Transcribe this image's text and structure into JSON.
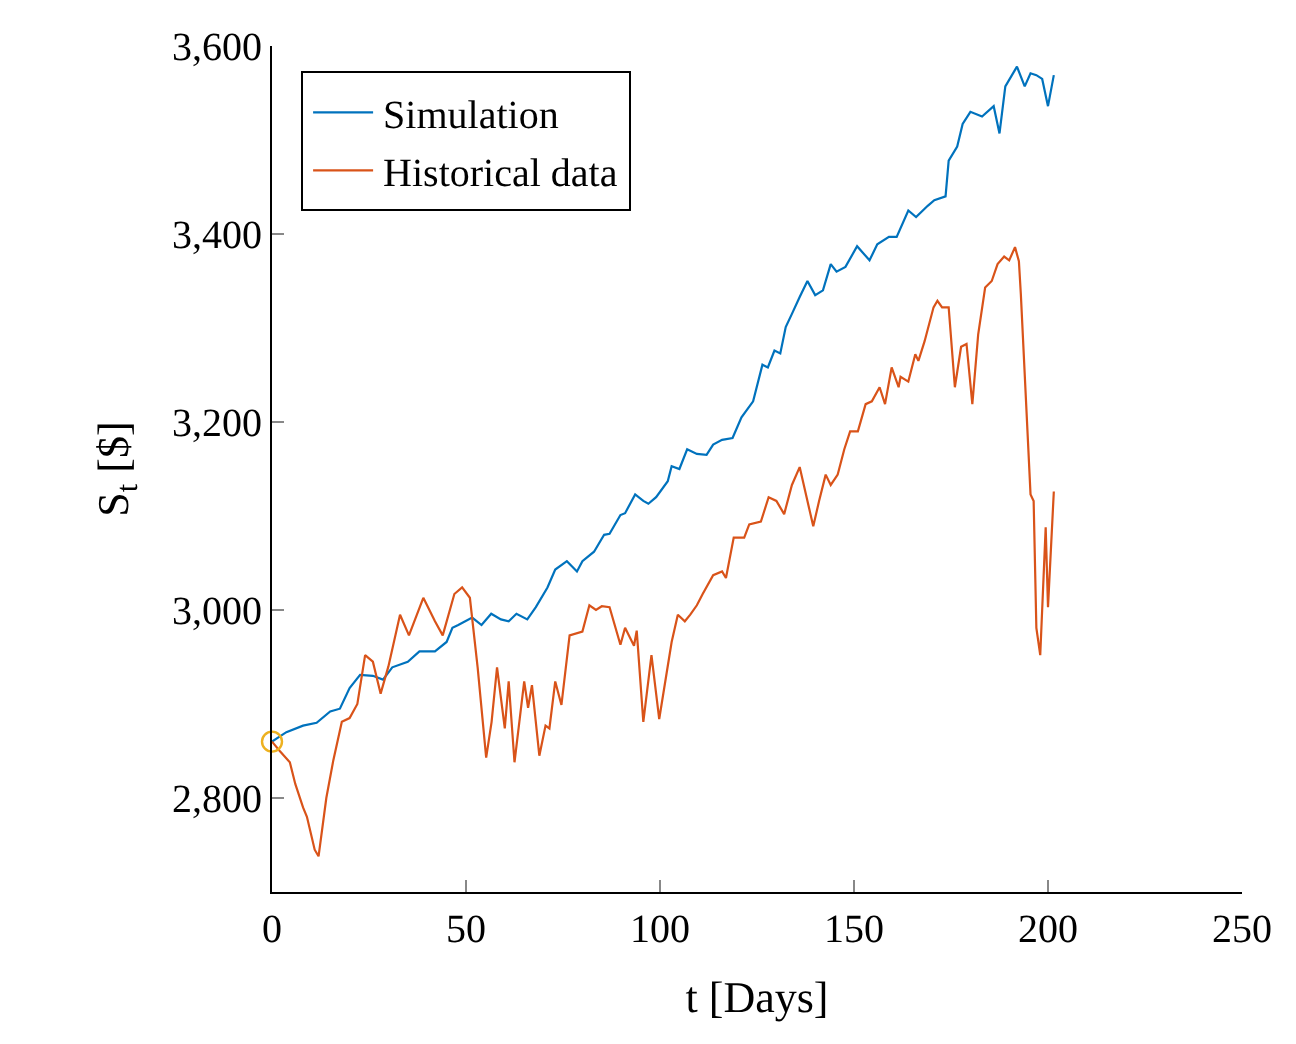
{
  "chart_data": {
    "type": "line",
    "xlabel": "t [Days]",
    "ylabel": "S$_{t}$ [$]",
    "xlim": [
      0,
      250
    ],
    "xticks": [
      0,
      50,
      100,
      150,
      200,
      250
    ],
    "ylim": [
      2700,
      3600
    ],
    "yticks": [
      {
        "value": 2800,
        "label": "2,800"
      },
      {
        "value": 3000,
        "label": "3,000"
      },
      {
        "value": 3200,
        "label": "3,200"
      },
      {
        "value": 3400,
        "label": "3,400"
      },
      {
        "value": 3600,
        "label": "3,600"
      }
    ],
    "grid": false,
    "legend": "top left",
    "marker": "none",
    "series": [
      {
        "name": "Simulation",
        "color": "#0072bd",
        "x": [
          0,
          3.7,
          8,
          11.5,
          15,
          17.5,
          20,
          22.7,
          26,
          28.6,
          31,
          35,
          38,
          42,
          45,
          46.5,
          48,
          51.6,
          54,
          56.5,
          59,
          61,
          63,
          65.8,
          68,
          71,
          73,
          76,
          78.6,
          80,
          83,
          85.6,
          87,
          89.8,
          91,
          93.6,
          95.7,
          97,
          99,
          102,
          103,
          105,
          107,
          109.5,
          112,
          113.7,
          116,
          118.7,
          121,
          124,
          126.4,
          127.8,
          129.5,
          131,
          132.4,
          134,
          136,
          138,
          140,
          142,
          144,
          145.5,
          147.8,
          150.8,
          154,
          156,
          159,
          161,
          164,
          166,
          169,
          170.7,
          173.6,
          174.4,
          176.6,
          178,
          180,
          183,
          186,
          187.5,
          189,
          192,
          194,
          195.5,
          197,
          198.5,
          200,
          201.5
        ],
        "values": [
          2860,
          2870,
          2877,
          2880,
          2892,
          2895,
          2917,
          2931,
          2930,
          2926,
          2939,
          2945,
          2956,
          2956,
          2966,
          2981,
          2984,
          2992,
          2984,
          2996,
          2990,
          2988,
          2996,
          2990,
          3003,
          3024,
          3043,
          3052,
          3041,
          3052,
          3062,
          3080,
          3081,
          3101,
          3103,
          3123,
          3116,
          3113,
          3120,
          3137,
          3153,
          3150,
          3171,
          3166,
          3165,
          3176,
          3181,
          3183,
          3205,
          3222,
          3261,
          3258,
          3276,
          3273,
          3301,
          3315,
          3333,
          3350,
          3335,
          3340,
          3368,
          3360,
          3365,
          3387,
          3372,
          3389,
          3397,
          3397,
          3425,
          3418,
          3430,
          3436,
          3440,
          3478,
          3493,
          3517,
          3530,
          3525,
          3536,
          3507,
          3557,
          3578,
          3557,
          3571,
          3569,
          3565,
          3536,
          3569
        ]
      },
      {
        "name": "Historical data",
        "color": "#d95319",
        "x": [
          0,
          2,
          4.6,
          6,
          8,
          9,
          11,
          12,
          14,
          15.8,
          18,
          20,
          22,
          24,
          26,
          28,
          30,
          33,
          35.3,
          39,
          42,
          44,
          47,
          49,
          51,
          53,
          55.2,
          56.6,
          58,
          60,
          61,
          62.5,
          65,
          66,
          67,
          68.9,
          70.5,
          71.5,
          73,
          74.6,
          76.7,
          80,
          81.8,
          83.5,
          85,
          87,
          89.8,
          91,
          93.3,
          94,
          95.7,
          97.8,
          99.8,
          103,
          104.6,
          106.4,
          107.8,
          109.5,
          111,
          113.7,
          116,
          117,
          119,
          121.7,
          123,
          126,
          128,
          130,
          132,
          134,
          136,
          139.5,
          141,
          142.7,
          144,
          145.8,
          147.5,
          149,
          151,
          153,
          154.6,
          156.6,
          158,
          159.7,
          161.5,
          162,
          164,
          165.8,
          166.6,
          168.2,
          170.5,
          171.5,
          172.7,
          174.4,
          176,
          177.6,
          179,
          180.5,
          182,
          183.8,
          185.5,
          187,
          188.7,
          190,
          191.5,
          192.5,
          193,
          195.5,
          196.3,
          197,
          198,
          199.4,
          200,
          201.5
        ],
        "values": [
          2860,
          2850,
          2838,
          2815,
          2790,
          2780,
          2745,
          2738,
          2800,
          2840,
          2881,
          2885,
          2900,
          2952,
          2945,
          2911,
          2940,
          2995,
          2973,
          3013,
          2988,
          2973,
          3017,
          3024,
          3013,
          2939,
          2843,
          2881,
          2939,
          2874,
          2924,
          2838,
          2924,
          2896,
          2920,
          2845,
          2877,
          2874,
          2924,
          2899,
          2973,
          2977,
          3005,
          3000,
          3004,
          3003,
          2963,
          2981,
          2962,
          2978,
          2881,
          2952,
          2884,
          2966,
          2995,
          2988,
          2995,
          3005,
          3017,
          3037,
          3041,
          3034,
          3077,
          3077,
          3091,
          3094,
          3120,
          3116,
          3102,
          3133,
          3152,
          3089,
          3116,
          3144,
          3133,
          3144,
          3171,
          3190,
          3190,
          3219,
          3222,
          3237,
          3219,
          3258,
          3237,
          3248,
          3243,
          3272,
          3265,
          3286,
          3322,
          3329,
          3322,
          3322,
          3237,
          3280,
          3283,
          3219,
          3293,
          3343,
          3350,
          3368,
          3376,
          3372,
          3386,
          3371,
          3336,
          3123,
          3116,
          2981,
          2952,
          3088,
          3003,
          3126
        ]
      },
      {
        "type": "scatter",
        "marker": "circle",
        "color": "#edb120",
        "x": [
          0
        ],
        "values": [
          2860
        ]
      }
    ]
  }
}
